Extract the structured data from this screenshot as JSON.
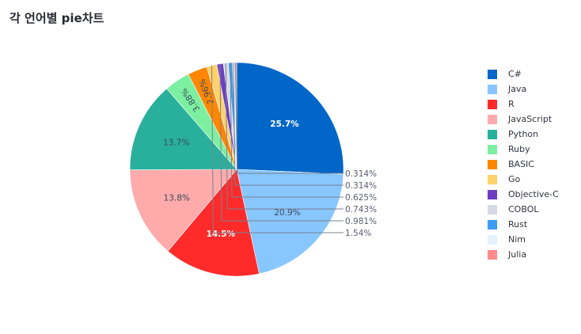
{
  "title": "각 언어별 pie차트",
  "chart_data": {
    "type": "pie",
    "title": "각 언어별 pie차트",
    "slices": [
      {
        "label": "C#",
        "value": 25.7,
        "text": "25.7%",
        "color": "#0066c8",
        "text_color": "#ffffff",
        "bold": true
      },
      {
        "label": "Java",
        "value": 20.9,
        "text": "20.9%",
        "color": "#87c6ff",
        "text_color": "#3a4a5a",
        "bold": false
      },
      {
        "label": "R",
        "value": 14.5,
        "text": "14.5%",
        "color": "#ff2b2b",
        "text_color": "#ffffff",
        "bold": true
      },
      {
        "label": "JavaScript",
        "value": 13.8,
        "text": "13.8%",
        "color": "#ffabab",
        "text_color": "#3a4a5a",
        "bold": false
      },
      {
        "label": "Python",
        "value": 13.7,
        "text": "13.7%",
        "color": "#29b09d",
        "text_color": "#3a4a5a",
        "bold": false
      },
      {
        "label": "Ruby",
        "value": 3.88,
        "text": "3.88%",
        "color": "#7defa1",
        "text_color": "#3a4a5a",
        "bold": false
      },
      {
        "label": "BASIC",
        "value": 2.96,
        "text": "2.96%",
        "color": "#ff8700",
        "text_color": "#3a4a5a",
        "bold": false
      },
      {
        "label": "Go",
        "value": 1.54,
        "text": "1.54%",
        "color": "#ffd16a",
        "text_color": "#5a6070",
        "bold": false
      },
      {
        "label": "Objective-C",
        "value": 0.981,
        "text": "0.981%",
        "color": "#6d3fc0",
        "text_color": "#5a6070",
        "bold": false
      },
      {
        "label": "COBOL",
        "value": 0.743,
        "text": "0.743%",
        "color": "#d5dae5",
        "text_color": "#5a6070",
        "bold": false
      },
      {
        "label": "Rust",
        "value": 0.625,
        "text": "0.625%",
        "color": "#3d9df3",
        "text_color": "#5a6070",
        "bold": false
      },
      {
        "label": "Nim",
        "value": 0.314,
        "text": "0.314%",
        "color": "#e2f3ff",
        "text_color": "#5a6070",
        "bold": false
      },
      {
        "label": "Julia",
        "value": 0.314,
        "text": "0.314%",
        "color": "#ff8c8c",
        "text_color": "#5a6070",
        "bold": false
      }
    ],
    "legend_position": "right"
  }
}
